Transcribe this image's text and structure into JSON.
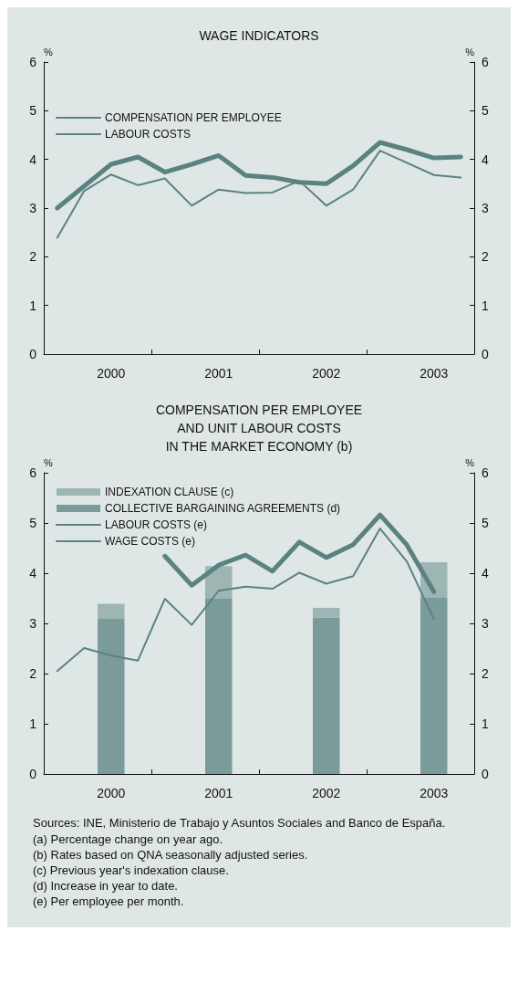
{
  "chart_data": [
    {
      "type": "line",
      "title": "WAGE INDICATORS",
      "ylabel": "%",
      "y2label": "%",
      "categories": [
        null,
        null,
        "2000",
        null,
        null,
        null,
        "2001",
        null,
        null,
        null,
        "2002",
        null,
        null,
        null,
        "2003",
        null
      ],
      "series": [
        {
          "name": "COMPENSATION PER EMPLOYEE",
          "color": "#5a8281",
          "values": [
            3.0,
            3.45,
            3.9,
            4.05,
            3.74,
            3.9,
            4.08,
            3.67,
            3.63,
            3.53,
            3.5,
            3.87,
            4.35,
            4.2,
            4.03,
            4.05
          ]
        },
        {
          "name": "LABOUR COSTS",
          "color": "#5a8281",
          "values": [
            2.39,
            3.35,
            3.69,
            3.47,
            3.61,
            3.05,
            3.38,
            3.31,
            3.32,
            3.56,
            3.05,
            3.38,
            4.18,
            3.93,
            3.68,
            3.63
          ]
        }
      ],
      "ylim": [
        0,
        6
      ],
      "yticks": [
        0,
        1,
        2,
        3,
        4,
        5,
        6
      ],
      "y2lim": [
        0,
        6
      ],
      "y2ticks": [
        0,
        1,
        2,
        3,
        4,
        5,
        6
      ],
      "grid": false,
      "legend": "top left",
      "marker": "none",
      "line_style": "solid"
    },
    {
      "type": "bar",
      "title": "COMPENSATION PER EMPLOYEE\nAND UNIT LABOUR COSTS\nIN THE MARKET ECONOMY (b)",
      "ylabel": "%",
      "y2label": "%",
      "categories": [
        null,
        null,
        "2000",
        null,
        null,
        null,
        "2001",
        null,
        null,
        null,
        "2002",
        null,
        null,
        null,
        "2003",
        null
      ],
      "stacked": true,
      "series": [
        {
          "name": "COLLECTIVE BARGAINING AGREEMENTS (d)",
          "color": "#7b9b9a",
          "values": [
            null,
            null,
            3.09,
            null,
            null,
            null,
            3.49,
            null,
            null,
            null,
            3.12,
            null,
            null,
            null,
            3.51,
            null
          ]
        },
        {
          "name": "INDEXATION CLAUSE (c)",
          "color": "#9db6b4",
          "values": [
            null,
            null,
            0.3,
            null,
            null,
            null,
            0.65,
            null,
            null,
            null,
            0.19,
            null,
            null,
            null,
            0.71,
            null
          ]
        },
        {
          "name": "LABOUR COSTS (e)",
          "type": "line",
          "color": "#5a8281",
          "values": [
            null,
            null,
            null,
            null,
            4.34,
            3.76,
            4.16,
            4.36,
            4.04,
            4.62,
            4.31,
            4.57,
            5.16,
            4.56,
            3.63,
            null
          ]
        },
        {
          "name": "WAGE COSTS (e)",
          "type": "line",
          "color": "#5a8281",
          "values": [
            2.05,
            2.51,
            2.36,
            2.26,
            3.49,
            2.97,
            3.65,
            3.73,
            3.69,
            4.01,
            3.79,
            3.94,
            4.89,
            4.23,
            3.08,
            null
          ]
        }
      ],
      "ylim": [
        0,
        6
      ],
      "yticks": [
        0,
        1,
        2,
        3,
        4,
        5,
        6
      ],
      "y2lim": [
        0,
        6
      ],
      "y2ticks": [
        0,
        1,
        2,
        3,
        4,
        5,
        6
      ],
      "grid": false,
      "legend": "top left",
      "marker": "none",
      "line_style": "solid",
      "annotations": [
        "Sources: INE, Ministerio de Trabajo y Asuntos Sociales and Banco de España.",
        "(a)  Percentage change on year ago.",
        "(b)  Rates based on QNA seasonally adjusted series.",
        "(c)  Previous year's indexation clause.",
        "(d)  Increase in year to date.",
        "(e)  Per employee per month."
      ]
    }
  ]
}
